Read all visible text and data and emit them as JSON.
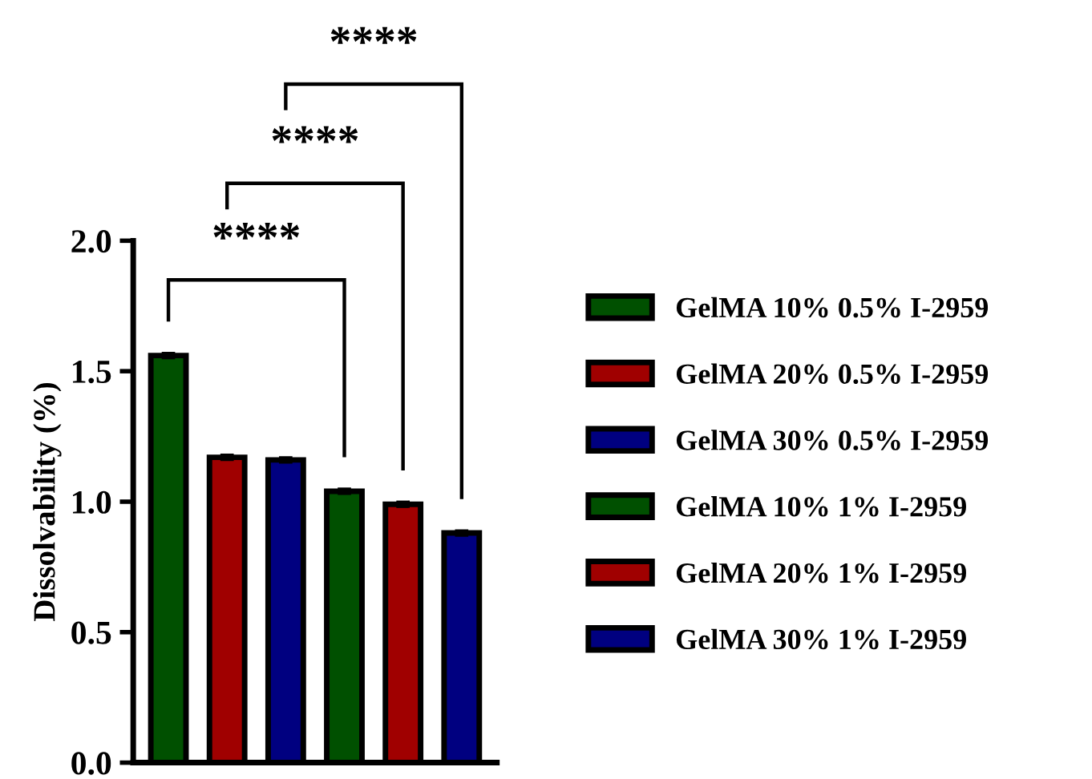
{
  "chart_data": {
    "type": "bar",
    "ylabel": "Dissolvability (%)",
    "categories": [
      null,
      null,
      null,
      null,
      null,
      null
    ],
    "stacked": true,
    "series": [
      {
        "name": "GelMA 10% 0.5% I-2959",
        "color": "#005000",
        "values": [
          1.56,
          null,
          null,
          null,
          null,
          null
        ],
        "errors": [
          0.01,
          null,
          null,
          null,
          null,
          null
        ]
      },
      {
        "name": "GelMA 20% 0.5% I-2959",
        "color": "#a00000",
        "values": [
          null,
          1.17,
          null,
          null,
          null,
          null
        ],
        "errors": [
          null,
          0.01,
          null,
          null,
          null,
          null
        ]
      },
      {
        "name": "GelMA 30% 0.5% I-2959",
        "color": "#000080",
        "values": [
          null,
          null,
          1.16,
          null,
          null,
          null
        ],
        "errors": [
          null,
          null,
          0.01,
          null,
          null,
          null
        ]
      },
      {
        "name": "GelMA 10% 1% I-2959",
        "color": "#005000",
        "values": [
          null,
          null,
          null,
          1.04,
          null,
          null
        ],
        "errors": [
          null,
          null,
          null,
          0.01,
          null,
          null
        ]
      },
      {
        "name": "GelMA 20% 1% I-2959",
        "color": "#a00000",
        "values": [
          null,
          null,
          null,
          null,
          0.99,
          null
        ],
        "errors": [
          null,
          null,
          null,
          null,
          0.01,
          null
        ]
      },
      {
        "name": "GelMA 30% 1% I-2959",
        "color": "#000080",
        "values": [
          null,
          null,
          null,
          null,
          null,
          0.88
        ],
        "errors": [
          null,
          null,
          null,
          null,
          null,
          0.01
        ]
      }
    ],
    "ylim": [
      0,
      2.0
    ],
    "yticks": [
      {
        "value": 0,
        "label": "0.0"
      },
      {
        "value": 0.5,
        "label": "0.5"
      },
      {
        "value": 1.0,
        "label": "1.0"
      },
      {
        "value": 1.5,
        "label": "1.5"
      },
      {
        "value": 2.0,
        "label": "2.0"
      }
    ],
    "annotations": [
      "****",
      "****",
      "****"
    ],
    "tick_labels": "y",
    "grid": false,
    "legend": "right"
  }
}
